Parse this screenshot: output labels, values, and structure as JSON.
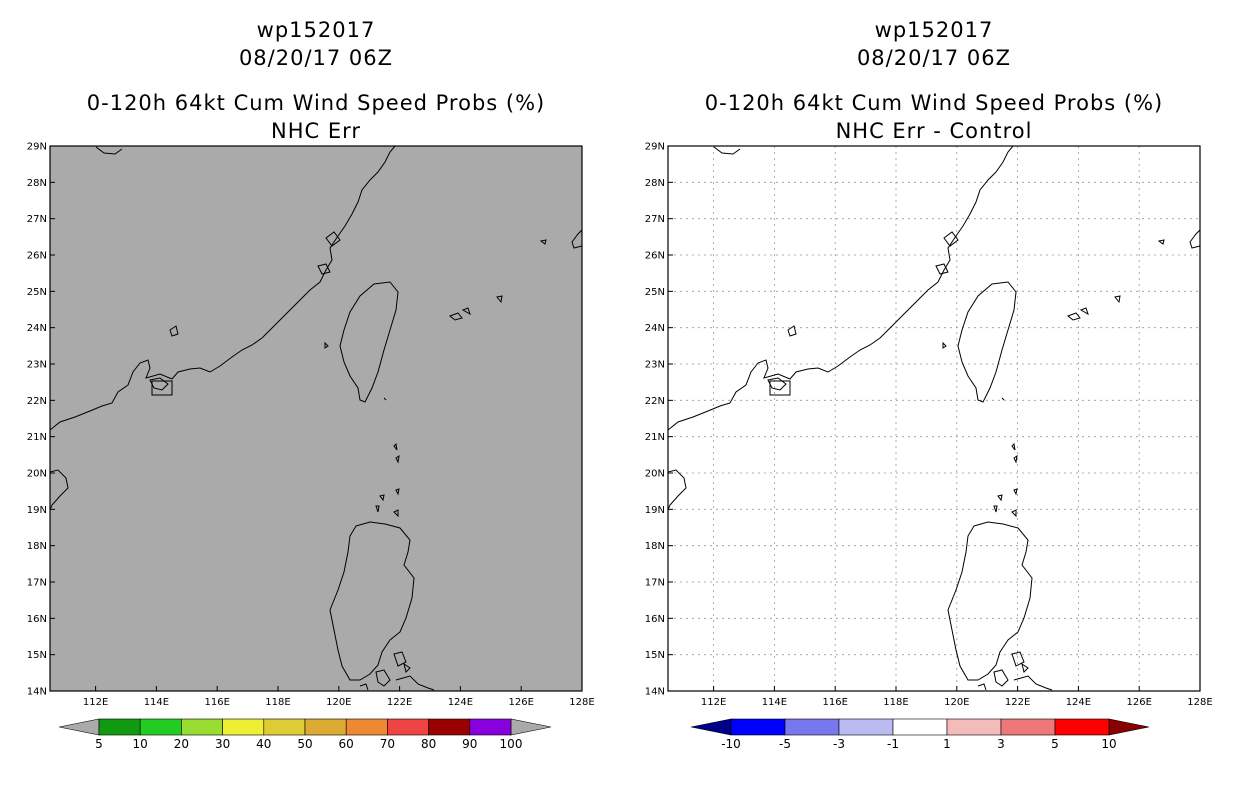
{
  "left_panel": {
    "storm_id": "wp152017",
    "date_time": "08/20/17 06Z",
    "product": "0-120h 64kt Cum Wind Speed Probs (%)",
    "subtitle": "NHC Err",
    "background_color": "#aaaaaa",
    "colorbar": {
      "colors": [
        "#119911",
        "#22cc22",
        "#99dd33",
        "#eeee33",
        "#ddcc33",
        "#ddaa33",
        "#ee8833",
        "#ee4444",
        "#990000",
        "#8800dd"
      ],
      "labels": [
        "5",
        "10",
        "20",
        "30",
        "40",
        "50",
        "60",
        "70",
        "80",
        "90",
        "100"
      ],
      "end_color": "#aaaaaa"
    }
  },
  "right_panel": {
    "storm_id": "wp152017",
    "date_time": "08/20/17 06Z",
    "product": "0-120h 64kt Cum Wind Speed Probs (%)",
    "subtitle": "NHC Err - Control",
    "background_color": "#ffffff",
    "colorbar": {
      "colors": [
        "#0000ff",
        "#7777ee",
        "#bbbbf4",
        "#ffffff",
        "#f4bbbb",
        "#ee7777",
        "#ff0000"
      ],
      "labels": [
        "-10",
        "-5",
        "-3",
        "-1",
        "1",
        "3",
        "5",
        "10"
      ],
      "low_end_color": "#000088",
      "high_end_color": "#880000"
    }
  },
  "map": {
    "lon_ticks": [
      "112E",
      "114E",
      "116E",
      "118E",
      "120E",
      "122E",
      "124E",
      "126E",
      "128E"
    ],
    "lat_ticks": [
      "29N",
      "28N",
      "27N",
      "26N",
      "25N",
      "24N",
      "23N",
      "22N",
      "21N",
      "20N",
      "19N",
      "18N",
      "17N",
      "16N",
      "15N",
      "14N"
    ],
    "lon_range": [
      110.5,
      128
    ],
    "lat_range": [
      14,
      29
    ]
  }
}
